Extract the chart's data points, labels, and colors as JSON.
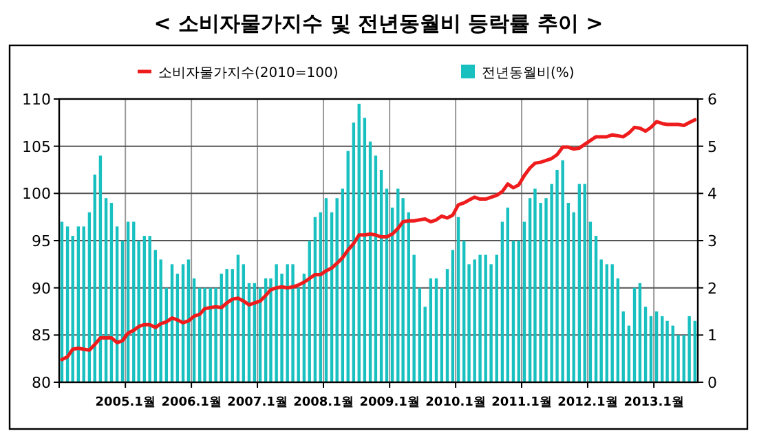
{
  "chart_data": {
    "type": "bar",
    "title": "< 소비자물가지수 및 전년동월비 등락률 추이 >",
    "x": [
      "2004-01-16",
      "2004-02-16",
      "2004-03-16",
      "2004-04-16",
      "2004-05-16",
      "2004-06-16",
      "2004-07-16",
      "2004-08-16",
      "2004-09-16",
      "2004-10-16",
      "2004-11-16",
      "2004-12-16",
      "2005-01-16",
      "2005-02-16",
      "2005-03-16",
      "2005-04-16",
      "2005-05-16",
      "2005-06-16",
      "2005-07-16",
      "2005-08-16",
      "2005-09-16",
      "2005-10-16",
      "2005-11-16",
      "2005-12-16",
      "2006-01-16",
      "2006-02-16",
      "2006-03-16",
      "2006-04-16",
      "2006-05-16",
      "2006-06-16",
      "2006-07-16",
      "2006-08-16",
      "2006-09-16",
      "2006-10-16",
      "2006-11-16",
      "2006-12-16",
      "2007-01-16",
      "2007-02-16",
      "2007-03-16",
      "2007-04-16",
      "2007-05-16",
      "2007-06-16",
      "2007-07-16",
      "2007-08-16",
      "2007-09-16",
      "2007-10-16",
      "2007-11-16",
      "2007-12-16",
      "2008-01-16",
      "2008-02-16",
      "2008-03-16",
      "2008-04-16",
      "2008-05-16",
      "2008-06-16",
      "2008-07-16",
      "2008-08-16",
      "2008-09-16",
      "2008-10-16",
      "2008-11-16",
      "2008-12-16",
      "2009-01-16",
      "2009-02-16",
      "2009-03-16",
      "2009-04-16",
      "2009-05-16",
      "2009-06-16",
      "2009-07-16",
      "2009-08-16",
      "2009-09-16",
      "2009-10-16",
      "2009-11-16",
      "2009-12-16",
      "2010-01-16",
      "2010-02-16",
      "2010-03-16",
      "2010-04-16",
      "2010-05-16",
      "2010-06-16",
      "2010-07-16",
      "2010-08-16",
      "2010-09-16",
      "2010-10-16",
      "2010-11-16",
      "2010-12-16",
      "2011-01-16",
      "2011-02-16",
      "2011-03-16",
      "2011-04-16",
      "2011-05-16",
      "2011-06-16",
      "2011-07-16",
      "2011-08-16",
      "2011-09-16",
      "2011-10-16",
      "2011-11-16",
      "2011-12-16",
      "2012-01-16",
      "2012-02-16",
      "2012-03-16",
      "2012-04-16",
      "2012-05-16",
      "2012-06-16",
      "2012-07-16",
      "2012-08-16",
      "2012-09-16",
      "2012-10-16",
      "2012-11-16",
      "2012-12-16",
      "2013-01-16",
      "2013-02-16",
      "2013-03-16",
      "2013-04-16",
      "2013-05-16",
      "2013-06-16",
      "2013-07-16",
      "2013-08-16"
    ],
    "series": [
      {
        "name": "소비자물가지수(2010=100)",
        "type": "line",
        "color": "#ee1c1c",
        "values": [
          82.4,
          82.7,
          83.5,
          83.6,
          83.5,
          83.4,
          84.0,
          84.7,
          84.7,
          84.7,
          84.2,
          84.4,
          85.2,
          85.5,
          85.9,
          86.1,
          86.1,
          85.8,
          86.2,
          86.4,
          86.8,
          86.6,
          86.3,
          86.5,
          87.0,
          87.2,
          87.8,
          87.9,
          88.0,
          87.9,
          88.4,
          88.8,
          88.9,
          88.6,
          88.2,
          88.4,
          88.6,
          89.2,
          89.8,
          90.0,
          90.1,
          90.0,
          90.1,
          90.3,
          90.6,
          91.0,
          91.4,
          91.4,
          91.8,
          92.1,
          92.6,
          93.2,
          94.0,
          94.7,
          95.6,
          95.6,
          95.7,
          95.6,
          95.4,
          95.4,
          95.7,
          96.3,
          97.0,
          97.1,
          97.1,
          97.2,
          97.3,
          97.0,
          97.2,
          97.6,
          97.4,
          97.7,
          98.8,
          99.0,
          99.3,
          99.6,
          99.4,
          99.4,
          99.6,
          99.8,
          100.2,
          101.0,
          100.6,
          100.9,
          101.9,
          102.7,
          103.2,
          103.3,
          103.5,
          103.7,
          104.1,
          104.9,
          104.9,
          104.7,
          104.8,
          105.2,
          105.6,
          106.0,
          106.0,
          106.0,
          106.2,
          106.1,
          106.0,
          106.4,
          107.0,
          106.9,
          106.6,
          107.0,
          107.6,
          107.4,
          107.3,
          107.3,
          107.3,
          107.2,
          107.5,
          107.8
        ]
      },
      {
        "name": "전년동월비(%)",
        "axis": "y2",
        "color": "#19c0c0",
        "values": [
          3.4,
          3.3,
          3.1,
          3.3,
          3.3,
          3.6,
          4.4,
          4.8,
          3.9,
          3.8,
          3.3,
          3.0,
          3.4,
          3.4,
          3.0,
          3.1,
          3.1,
          2.8,
          2.6,
          2.0,
          2.5,
          2.3,
          2.5,
          2.6,
          2.2,
          2.0,
          2.0,
          2.0,
          2.0,
          2.3,
          2.4,
          2.4,
          2.7,
          2.5,
          2.1,
          2.1,
          2.0,
          2.2,
          2.2,
          2.5,
          2.3,
          2.5,
          2.5,
          2.0,
          2.3,
          3.0,
          3.5,
          3.6,
          3.9,
          3.6,
          3.9,
          4.1,
          4.9,
          5.5,
          5.9,
          5.6,
          5.1,
          4.8,
          4.5,
          4.1,
          3.7,
          4.1,
          3.9,
          3.6,
          2.7,
          2.0,
          1.6,
          2.2,
          2.2,
          2.0,
          2.4,
          2.8,
          3.5,
          3.0,
          2.5,
          2.6,
          2.7,
          2.7,
          2.5,
          2.7,
          3.4,
          3.7,
          3.0,
          3.0,
          3.4,
          3.9,
          4.1,
          3.8,
          3.9,
          4.2,
          4.5,
          4.7,
          3.8,
          3.6,
          4.2,
          4.2,
          3.4,
          3.1,
          2.6,
          2.5,
          2.5,
          2.2,
          1.5,
          1.2,
          2.0,
          2.1,
          1.6,
          1.4,
          1.5,
          1.4,
          1.3,
          1.2,
          1.0,
          1.0,
          1.4,
          1.3
        ]
      }
    ],
    "xlim": [
      "2004-01",
      "2013-09"
    ],
    "xticks": [
      {
        "value": "2004-01",
        "label": null
      },
      {
        "value": "2005-01",
        "label": "2005.1월"
      },
      {
        "value": "2006-01",
        "label": "2006.1월"
      },
      {
        "value": "2007-01",
        "label": "2007.1월"
      },
      {
        "value": "2008-01",
        "label": "2008.1월"
      },
      {
        "value": "2009-01",
        "label": "2009.1월"
      },
      {
        "value": "2010-01",
        "label": "2010.1월"
      },
      {
        "value": "2011-01",
        "label": "2011.1월"
      },
      {
        "value": "2012-01",
        "label": "2012.1월"
      },
      {
        "value": "2013-01",
        "label": "2013.1월"
      }
    ],
    "ylim": [
      80,
      110
    ],
    "yticks": [
      80,
      85,
      90,
      95,
      100,
      105,
      110
    ],
    "y2lim": [
      0,
      6
    ],
    "y2ticks": [
      0,
      1,
      2,
      3,
      4,
      5,
      6
    ],
    "grid": true,
    "legend": "top"
  }
}
